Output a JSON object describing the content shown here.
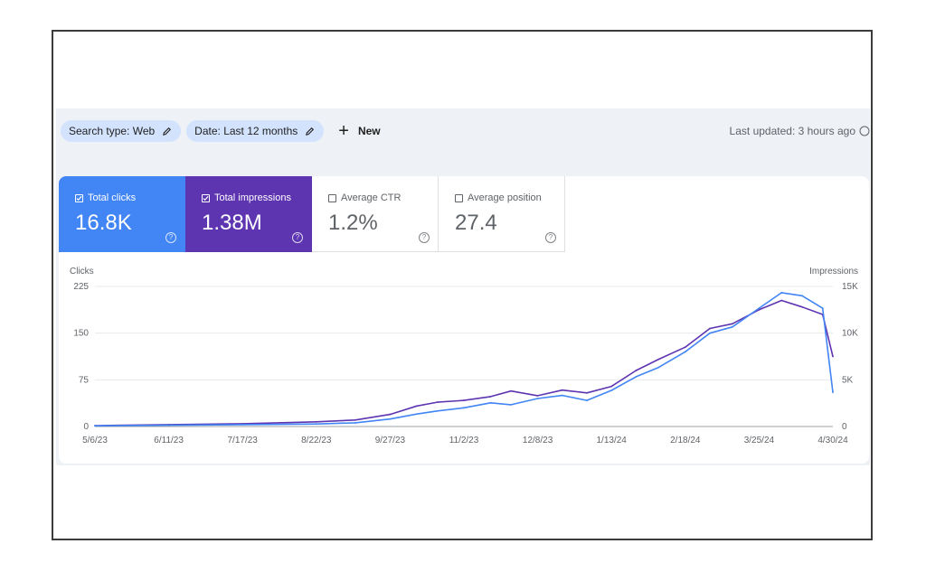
{
  "toolbar": {
    "chips": [
      {
        "label": "Search type: Web"
      },
      {
        "label": "Date: Last 12 months"
      }
    ],
    "new_label": "New",
    "last_updated": "Last updated: 3 hours ago"
  },
  "metrics": [
    {
      "label": "Total clicks",
      "value": "16.8K",
      "selected": true,
      "color": "#4285f4"
    },
    {
      "label": "Total impressions",
      "value": "1.38M",
      "selected": true,
      "color": "#5e35b1"
    },
    {
      "label": "Average CTR",
      "value": "1.2%",
      "selected": false
    },
    {
      "label": "Average position",
      "value": "27.4",
      "selected": false
    }
  ],
  "chart_data": {
    "type": "line",
    "left_axis": {
      "label": "Clicks",
      "ticks": [
        0,
        75,
        150,
        225
      ],
      "range": [
        0,
        225
      ]
    },
    "right_axis": {
      "label": "Impressions",
      "ticks": [
        "0",
        "5K",
        "10K",
        "15K"
      ],
      "range": [
        0,
        15000
      ]
    },
    "x_tick_labels": [
      "5/6/23",
      "6/11/23",
      "7/17/23",
      "8/22/23",
      "9/27/23",
      "11/2/23",
      "12/8/23",
      "1/13/24",
      "2/18/24",
      "3/25/24",
      "4/30/24"
    ],
    "grid": true,
    "series": [
      {
        "key": "clicks",
        "color": "#4285f4",
        "axis": "left",
        "points": [
          [
            "5/6/23",
            1
          ],
          [
            "6/11/23",
            2
          ],
          [
            "7/17/23",
            3
          ],
          [
            "8/22/23",
            4
          ],
          [
            "9/10/23",
            6
          ],
          [
            "9/27/23",
            12
          ],
          [
            "10/10/23",
            20
          ],
          [
            "10/20/23",
            25
          ],
          [
            "11/2/23",
            30
          ],
          [
            "11/15/23",
            38
          ],
          [
            "11/25/23",
            35
          ],
          [
            "12/8/23",
            45
          ],
          [
            "12/20/23",
            50
          ],
          [
            "1/1/24",
            42
          ],
          [
            "1/13/24",
            58
          ],
          [
            "1/25/24",
            80
          ],
          [
            "2/5/24",
            95
          ],
          [
            "2/18/24",
            120
          ],
          [
            "3/1/24",
            150
          ],
          [
            "3/12/24",
            160
          ],
          [
            "3/25/24",
            190
          ],
          [
            "4/5/24",
            215
          ],
          [
            "4/15/24",
            210
          ],
          [
            "4/25/24",
            190
          ],
          [
            "4/30/24",
            55
          ]
        ]
      },
      {
        "key": "impressions",
        "color": "#5e35b1",
        "axis": "right",
        "points": [
          [
            "5/6/23",
            100
          ],
          [
            "6/11/23",
            200
          ],
          [
            "7/17/23",
            300
          ],
          [
            "8/22/23",
            500
          ],
          [
            "9/10/23",
            700
          ],
          [
            "9/27/23",
            1300
          ],
          [
            "10/10/23",
            2200
          ],
          [
            "10/20/23",
            2600
          ],
          [
            "11/2/23",
            2800
          ],
          [
            "11/15/23",
            3200
          ],
          [
            "11/25/23",
            3800
          ],
          [
            "12/8/23",
            3300
          ],
          [
            "12/20/23",
            3900
          ],
          [
            "1/1/24",
            3600
          ],
          [
            "1/13/24",
            4300
          ],
          [
            "1/25/24",
            6000
          ],
          [
            "2/5/24",
            7200
          ],
          [
            "2/18/24",
            8500
          ],
          [
            "3/1/24",
            10500
          ],
          [
            "3/12/24",
            11000
          ],
          [
            "3/25/24",
            12500
          ],
          [
            "4/5/24",
            13500
          ],
          [
            "4/15/24",
            12800
          ],
          [
            "4/25/24",
            12000
          ],
          [
            "4/30/24",
            7500
          ]
        ]
      }
    ]
  }
}
